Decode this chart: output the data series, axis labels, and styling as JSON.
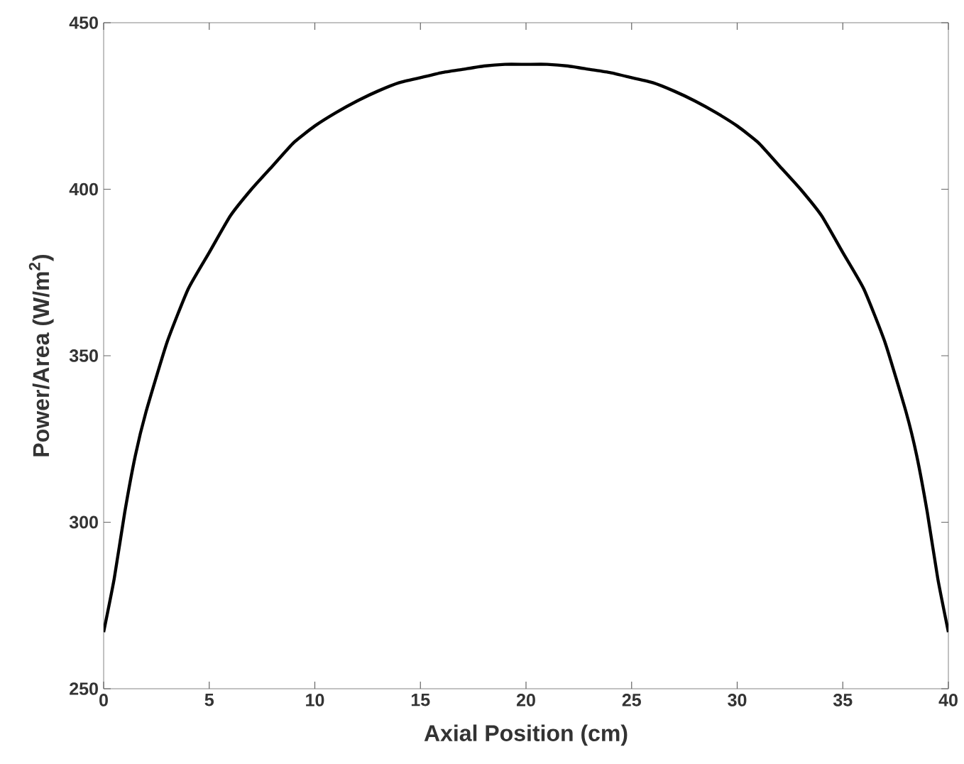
{
  "chart_data": {
    "type": "line",
    "xlabel": "Axial Position (cm)",
    "ylabel": "Power/Area (W/m$^{2}$)",
    "xlim": [
      0,
      40
    ],
    "ylim": [
      250,
      450
    ],
    "xticks": [
      0,
      5,
      10,
      15,
      20,
      25,
      30,
      35,
      40
    ],
    "yticks": [
      250,
      300,
      350,
      400,
      450
    ],
    "marker": "none",
    "line_style": "solid",
    "series": [
      {
        "color": "#000000",
        "x": [
          0,
          0.5,
          1,
          1.5,
          2,
          3,
          4,
          5,
          6,
          7,
          8,
          9,
          10,
          11,
          12,
          13,
          14,
          15,
          16,
          17,
          18,
          19,
          20,
          21,
          22,
          23,
          24,
          25,
          26,
          27,
          28,
          29,
          30,
          31,
          32,
          33,
          34,
          35,
          36,
          37,
          38,
          38.5,
          39,
          39.5,
          40
        ],
        "values": [
          267,
          283,
          303,
          320,
          333,
          354,
          370,
          381,
          392,
          400,
          407,
          414,
          419,
          423,
          426.5,
          429.5,
          432,
          433.5,
          435,
          436,
          437,
          437.5,
          437.5,
          437.5,
          437,
          436,
          435,
          433.5,
          432,
          429.5,
          426.5,
          423,
          419,
          414,
          407,
          400,
          392,
          381,
          370,
          354,
          333,
          320,
          303,
          283,
          267
        ]
      }
    ]
  }
}
